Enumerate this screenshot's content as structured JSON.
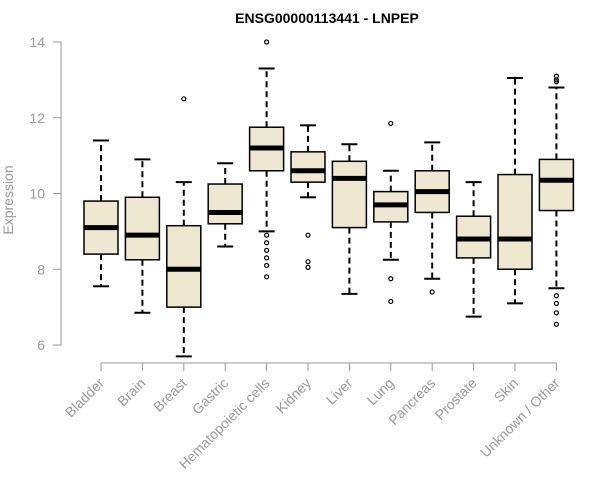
{
  "chart_data": {
    "type": "boxplot",
    "title": "ENSG00000113441 - LNPEP",
    "xlabel": "",
    "ylabel": "Expression",
    "ylim": [
      5.6,
      14.0
    ],
    "yticks": [
      6,
      8,
      10,
      12,
      14
    ],
    "grid": false,
    "legend": "none",
    "colors": {
      "box_fill": "#EEE8D1",
      "stroke": "#000000",
      "axis": "#999999"
    },
    "categories": [
      "Bladder",
      "Brain",
      "Breast",
      "Gastric",
      "Hematopoietic cells",
      "Kidney",
      "Liver",
      "Lung",
      "Pancreas",
      "Prostate",
      "Skin",
      "Unknown / Other"
    ],
    "boxes": [
      {
        "label": "Bladder",
        "whisker_low": 7.55,
        "q1": 8.4,
        "median": 9.1,
        "q3": 9.8,
        "whisker_high": 11.4,
        "outliers": []
      },
      {
        "label": "Brain",
        "whisker_low": 6.85,
        "q1": 8.25,
        "median": 8.9,
        "q3": 9.9,
        "whisker_high": 10.9,
        "outliers": []
      },
      {
        "label": "Breast",
        "whisker_low": 5.7,
        "q1": 7.0,
        "median": 8.0,
        "q3": 9.15,
        "whisker_high": 10.3,
        "outliers": [
          12.5
        ]
      },
      {
        "label": "Gastric",
        "whisker_low": 8.6,
        "q1": 9.2,
        "median": 9.5,
        "q3": 10.25,
        "whisker_high": 10.8,
        "outliers": []
      },
      {
        "label": "Hematopoietic cells",
        "whisker_low": 9.0,
        "q1": 10.6,
        "median": 11.2,
        "q3": 11.75,
        "whisker_high": 13.3,
        "outliers": [
          14.0,
          8.9,
          8.7,
          8.5,
          8.3,
          8.1,
          7.8
        ]
      },
      {
        "label": "Kidney",
        "whisker_low": 9.9,
        "q1": 10.3,
        "median": 10.6,
        "q3": 11.1,
        "whisker_high": 11.8,
        "outliers": [
          8.9,
          8.2,
          8.05
        ]
      },
      {
        "label": "Liver",
        "whisker_low": 7.35,
        "q1": 9.1,
        "median": 10.4,
        "q3": 10.85,
        "whisker_high": 11.3,
        "outliers": []
      },
      {
        "label": "Lung",
        "whisker_low": 8.25,
        "q1": 9.25,
        "median": 9.7,
        "q3": 10.05,
        "whisker_high": 10.6,
        "outliers": [
          11.85,
          7.75,
          7.15
        ]
      },
      {
        "label": "Pancreas",
        "whisker_low": 7.75,
        "q1": 9.5,
        "median": 10.05,
        "q3": 10.6,
        "whisker_high": 11.35,
        "outliers": [
          7.4
        ]
      },
      {
        "label": "Prostate",
        "whisker_low": 6.75,
        "q1": 8.3,
        "median": 8.8,
        "q3": 9.4,
        "whisker_high": 10.3,
        "outliers": []
      },
      {
        "label": "Skin",
        "whisker_low": 7.1,
        "q1": 8.0,
        "median": 8.8,
        "q3": 10.5,
        "whisker_high": 13.05,
        "outliers": []
      },
      {
        "label": "Unknown / Other",
        "whisker_low": 7.5,
        "q1": 9.55,
        "median": 10.35,
        "q3": 10.9,
        "whisker_high": 12.8,
        "outliers": [
          13.1,
          13.0,
          12.95,
          7.3,
          7.1,
          6.85,
          6.55
        ]
      }
    ]
  }
}
